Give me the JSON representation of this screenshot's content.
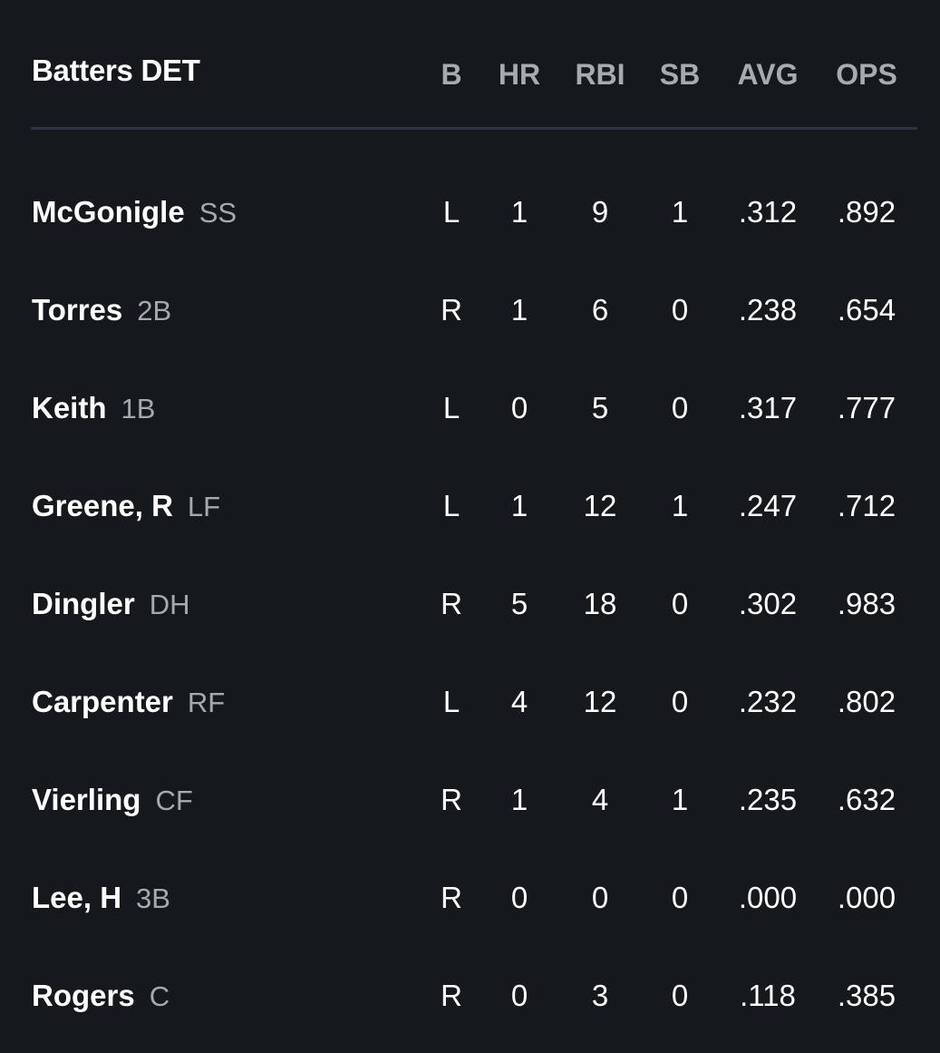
{
  "header": {
    "title": "Batters DET",
    "columns": [
      "B",
      "HR",
      "RBI",
      "SB",
      "AVG",
      "OPS"
    ]
  },
  "rows": [
    {
      "name": "McGonigle",
      "pos": "SS",
      "b": "L",
      "hr": "1",
      "rbi": "9",
      "sb": "1",
      "avg": ".312",
      "ops": ".892"
    },
    {
      "name": "Torres",
      "pos": "2B",
      "b": "R",
      "hr": "1",
      "rbi": "6",
      "sb": "0",
      "avg": ".238",
      "ops": ".654"
    },
    {
      "name": "Keith",
      "pos": "1B",
      "b": "L",
      "hr": "0",
      "rbi": "5",
      "sb": "0",
      "avg": ".317",
      "ops": ".777"
    },
    {
      "name": "Greene, R",
      "pos": "LF",
      "b": "L",
      "hr": "1",
      "rbi": "12",
      "sb": "1",
      "avg": ".247",
      "ops": ".712"
    },
    {
      "name": "Dingler",
      "pos": "DH",
      "b": "R",
      "hr": "5",
      "rbi": "18",
      "sb": "0",
      "avg": ".302",
      "ops": ".983"
    },
    {
      "name": "Carpenter",
      "pos": "RF",
      "b": "L",
      "hr": "4",
      "rbi": "12",
      "sb": "0",
      "avg": ".232",
      "ops": ".802"
    },
    {
      "name": "Vierling",
      "pos": "CF",
      "b": "R",
      "hr": "1",
      "rbi": "4",
      "sb": "1",
      "avg": ".235",
      "ops": ".632"
    },
    {
      "name": "Lee, H",
      "pos": "3B",
      "b": "R",
      "hr": "0",
      "rbi": "0",
      "sb": "0",
      "avg": ".000",
      "ops": ".000"
    },
    {
      "name": "Rogers",
      "pos": "C",
      "b": "R",
      "hr": "0",
      "rbi": "3",
      "sb": "0",
      "avg": ".118",
      "ops": ".385"
    }
  ],
  "colors": {
    "background": "#15191e",
    "divider": "#2c3441",
    "header_text": "#a7abb1",
    "position_text": "#a6aab0",
    "primary_text": "#ffffff"
  }
}
